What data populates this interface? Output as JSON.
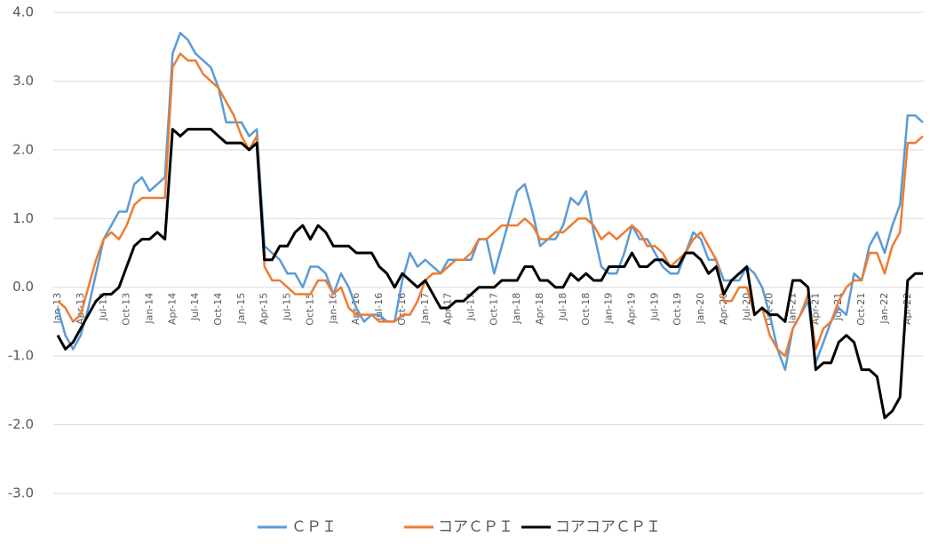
{
  "chart_data": {
    "type": "line",
    "categories": [
      "Jan-13",
      null,
      null,
      "Apr-13",
      null,
      null,
      "Jul-13",
      null,
      null,
      "Oct-13",
      null,
      null,
      "Jan-14",
      null,
      null,
      "Apr-14",
      null,
      null,
      "Jul-14",
      null,
      null,
      "Oct-14",
      null,
      null,
      "Jan-15",
      null,
      null,
      "Apr-15",
      null,
      null,
      "Jul-15",
      null,
      null,
      "Oct-15",
      null,
      null,
      "Jan-16",
      null,
      null,
      "Apr-16",
      null,
      null,
      "Jul-16",
      null,
      null,
      "Oct-16",
      null,
      null,
      "Jan-17",
      null,
      null,
      "Apr-17",
      null,
      null,
      "Jul-17",
      null,
      null,
      "Oct-17",
      null,
      null,
      "Jan-18",
      null,
      null,
      "Apr-18",
      null,
      null,
      "Jul-18",
      null,
      null,
      "Oct-18",
      null,
      null,
      "Jan-19",
      null,
      null,
      "Apr-19",
      null,
      null,
      "Jul-19",
      null,
      null,
      "Oct-19",
      null,
      null,
      "Jan-20",
      null,
      null,
      "Apr-20",
      null,
      null,
      "Jul-20",
      null,
      null,
      "Oct-20",
      null,
      null,
      "Jan-21",
      null,
      null,
      "Apr-21",
      null,
      null,
      "Jul-21",
      null,
      null,
      "Oct-21",
      null,
      null,
      "Jan-22",
      null,
      null,
      "Apr-22",
      null,
      null
    ],
    "series": [
      {
        "name": "ＣＰＩ",
        "color": "#5b9bd5",
        "values": [
          -0.3,
          -0.7,
          -0.9,
          -0.7,
          -0.3,
          0.2,
          0.7,
          0.9,
          1.1,
          1.1,
          1.5,
          1.6,
          1.4,
          1.5,
          1.6,
          3.4,
          3.7,
          3.6,
          3.4,
          3.3,
          3.2,
          2.9,
          2.4,
          2.4,
          2.4,
          2.2,
          2.3,
          0.6,
          0.5,
          0.4,
          0.2,
          0.2,
          0.0,
          0.3,
          0.3,
          0.2,
          -0.1,
          0.2,
          0.0,
          -0.3,
          -0.5,
          -0.4,
          -0.4,
          -0.5,
          -0.5,
          0.1,
          0.5,
          0.3,
          0.4,
          0.3,
          0.2,
          0.4,
          0.4,
          0.4,
          0.4,
          0.7,
          0.7,
          0.2,
          0.6,
          1.0,
          1.4,
          1.5,
          1.1,
          0.6,
          0.7,
          0.7,
          0.9,
          1.3,
          1.2,
          1.4,
          0.8,
          0.3,
          0.2,
          0.2,
          0.5,
          0.9,
          0.7,
          0.7,
          0.5,
          0.3,
          0.2,
          0.2,
          0.5,
          0.8,
          0.7,
          0.4,
          0.4,
          0.1,
          0.1,
          0.1,
          0.3,
          0.2,
          0.0,
          -0.4,
          -0.9,
          -1.2,
          -0.6,
          -0.4,
          -0.2,
          -1.1,
          -0.8,
          -0.5,
          -0.3,
          -0.4,
          0.2,
          0.1,
          0.6,
          0.8,
          0.5,
          0.9,
          1.2,
          2.5,
          2.5,
          2.4
        ]
      },
      {
        "name": "コアＣＰＩ",
        "color": "#ed7d31",
        "values": [
          -0.2,
          -0.3,
          -0.5,
          -0.4,
          0.0,
          0.4,
          0.7,
          0.8,
          0.7,
          0.9,
          1.2,
          1.3,
          1.3,
          1.3,
          1.3,
          3.2,
          3.4,
          3.3,
          3.3,
          3.1,
          3.0,
          2.9,
          2.7,
          2.5,
          2.2,
          2.0,
          2.2,
          0.3,
          0.1,
          0.1,
          0.0,
          -0.1,
          -0.1,
          -0.1,
          0.1,
          0.1,
          -0.1,
          0.0,
          -0.3,
          -0.4,
          -0.4,
          -0.4,
          -0.5,
          -0.5,
          -0.5,
          -0.4,
          -0.4,
          -0.2,
          0.1,
          0.2,
          0.2,
          0.3,
          0.4,
          0.4,
          0.5,
          0.7,
          0.7,
          0.8,
          0.9,
          0.9,
          0.9,
          1.0,
          0.9,
          0.7,
          0.7,
          0.8,
          0.8,
          0.9,
          1.0,
          1.0,
          0.9,
          0.7,
          0.8,
          0.7,
          0.8,
          0.9,
          0.8,
          0.6,
          0.6,
          0.5,
          0.3,
          0.4,
          0.5,
          0.7,
          0.8,
          0.6,
          0.4,
          -0.2,
          -0.2,
          0.0,
          0.0,
          -0.4,
          -0.3,
          -0.7,
          -0.9,
          -1.0,
          -0.6,
          -0.4,
          -0.1,
          -0.9,
          -0.6,
          -0.5,
          -0.2,
          0.0,
          0.1,
          0.1,
          0.5,
          0.5,
          0.2,
          0.6,
          0.8,
          2.1,
          2.1,
          2.2
        ]
      },
      {
        "name": "コアコアＣＰＩ",
        "color": "#000000",
        "values": [
          -0.7,
          -0.9,
          -0.8,
          -0.6,
          -0.4,
          -0.2,
          -0.1,
          -0.1,
          0.0,
          0.3,
          0.6,
          0.7,
          0.7,
          0.8,
          0.7,
          2.3,
          2.2,
          2.3,
          2.3,
          2.3,
          2.3,
          2.2,
          2.1,
          2.1,
          2.1,
          2.0,
          2.1,
          0.4,
          0.4,
          0.6,
          0.6,
          0.8,
          0.9,
          0.7,
          0.9,
          0.8,
          0.6,
          0.6,
          0.6,
          0.5,
          0.5,
          0.5,
          0.3,
          0.2,
          0.0,
          0.2,
          0.1,
          0.0,
          0.1,
          -0.1,
          -0.3,
          -0.3,
          -0.2,
          -0.2,
          -0.1,
          0.0,
          0.0,
          0.0,
          0.1,
          0.1,
          0.1,
          0.3,
          0.3,
          0.1,
          0.1,
          0.0,
          0.0,
          0.2,
          0.1,
          0.2,
          0.1,
          0.1,
          0.3,
          0.3,
          0.3,
          0.5,
          0.3,
          0.3,
          0.4,
          0.4,
          0.3,
          0.3,
          0.5,
          0.5,
          0.4,
          0.2,
          0.3,
          -0.1,
          0.1,
          0.2,
          0.3,
          -0.4,
          -0.3,
          -0.4,
          -0.4,
          -0.5,
          0.1,
          0.1,
          0.0,
          -1.2,
          -1.1,
          -1.1,
          -0.8,
          -0.7,
          -0.8,
          -1.2,
          -1.2,
          -1.3,
          -1.9,
          -1.8,
          -1.6,
          0.1,
          0.2,
          0.2
        ]
      }
    ],
    "ylim": [
      -3,
      4
    ],
    "yticks": [
      {
        "value": -3,
        "label": "-3.0"
      },
      {
        "value": -2,
        "label": "-2.0"
      },
      {
        "value": -1,
        "label": "-1.0"
      },
      {
        "value": 0,
        "label": "0.0"
      },
      {
        "value": 1,
        "label": "1.0"
      },
      {
        "value": 2,
        "label": "2.0"
      },
      {
        "value": 3,
        "label": "3.0"
      },
      {
        "value": 4,
        "label": "4.0"
      }
    ],
    "grid": true,
    "legend": "bottom"
  }
}
